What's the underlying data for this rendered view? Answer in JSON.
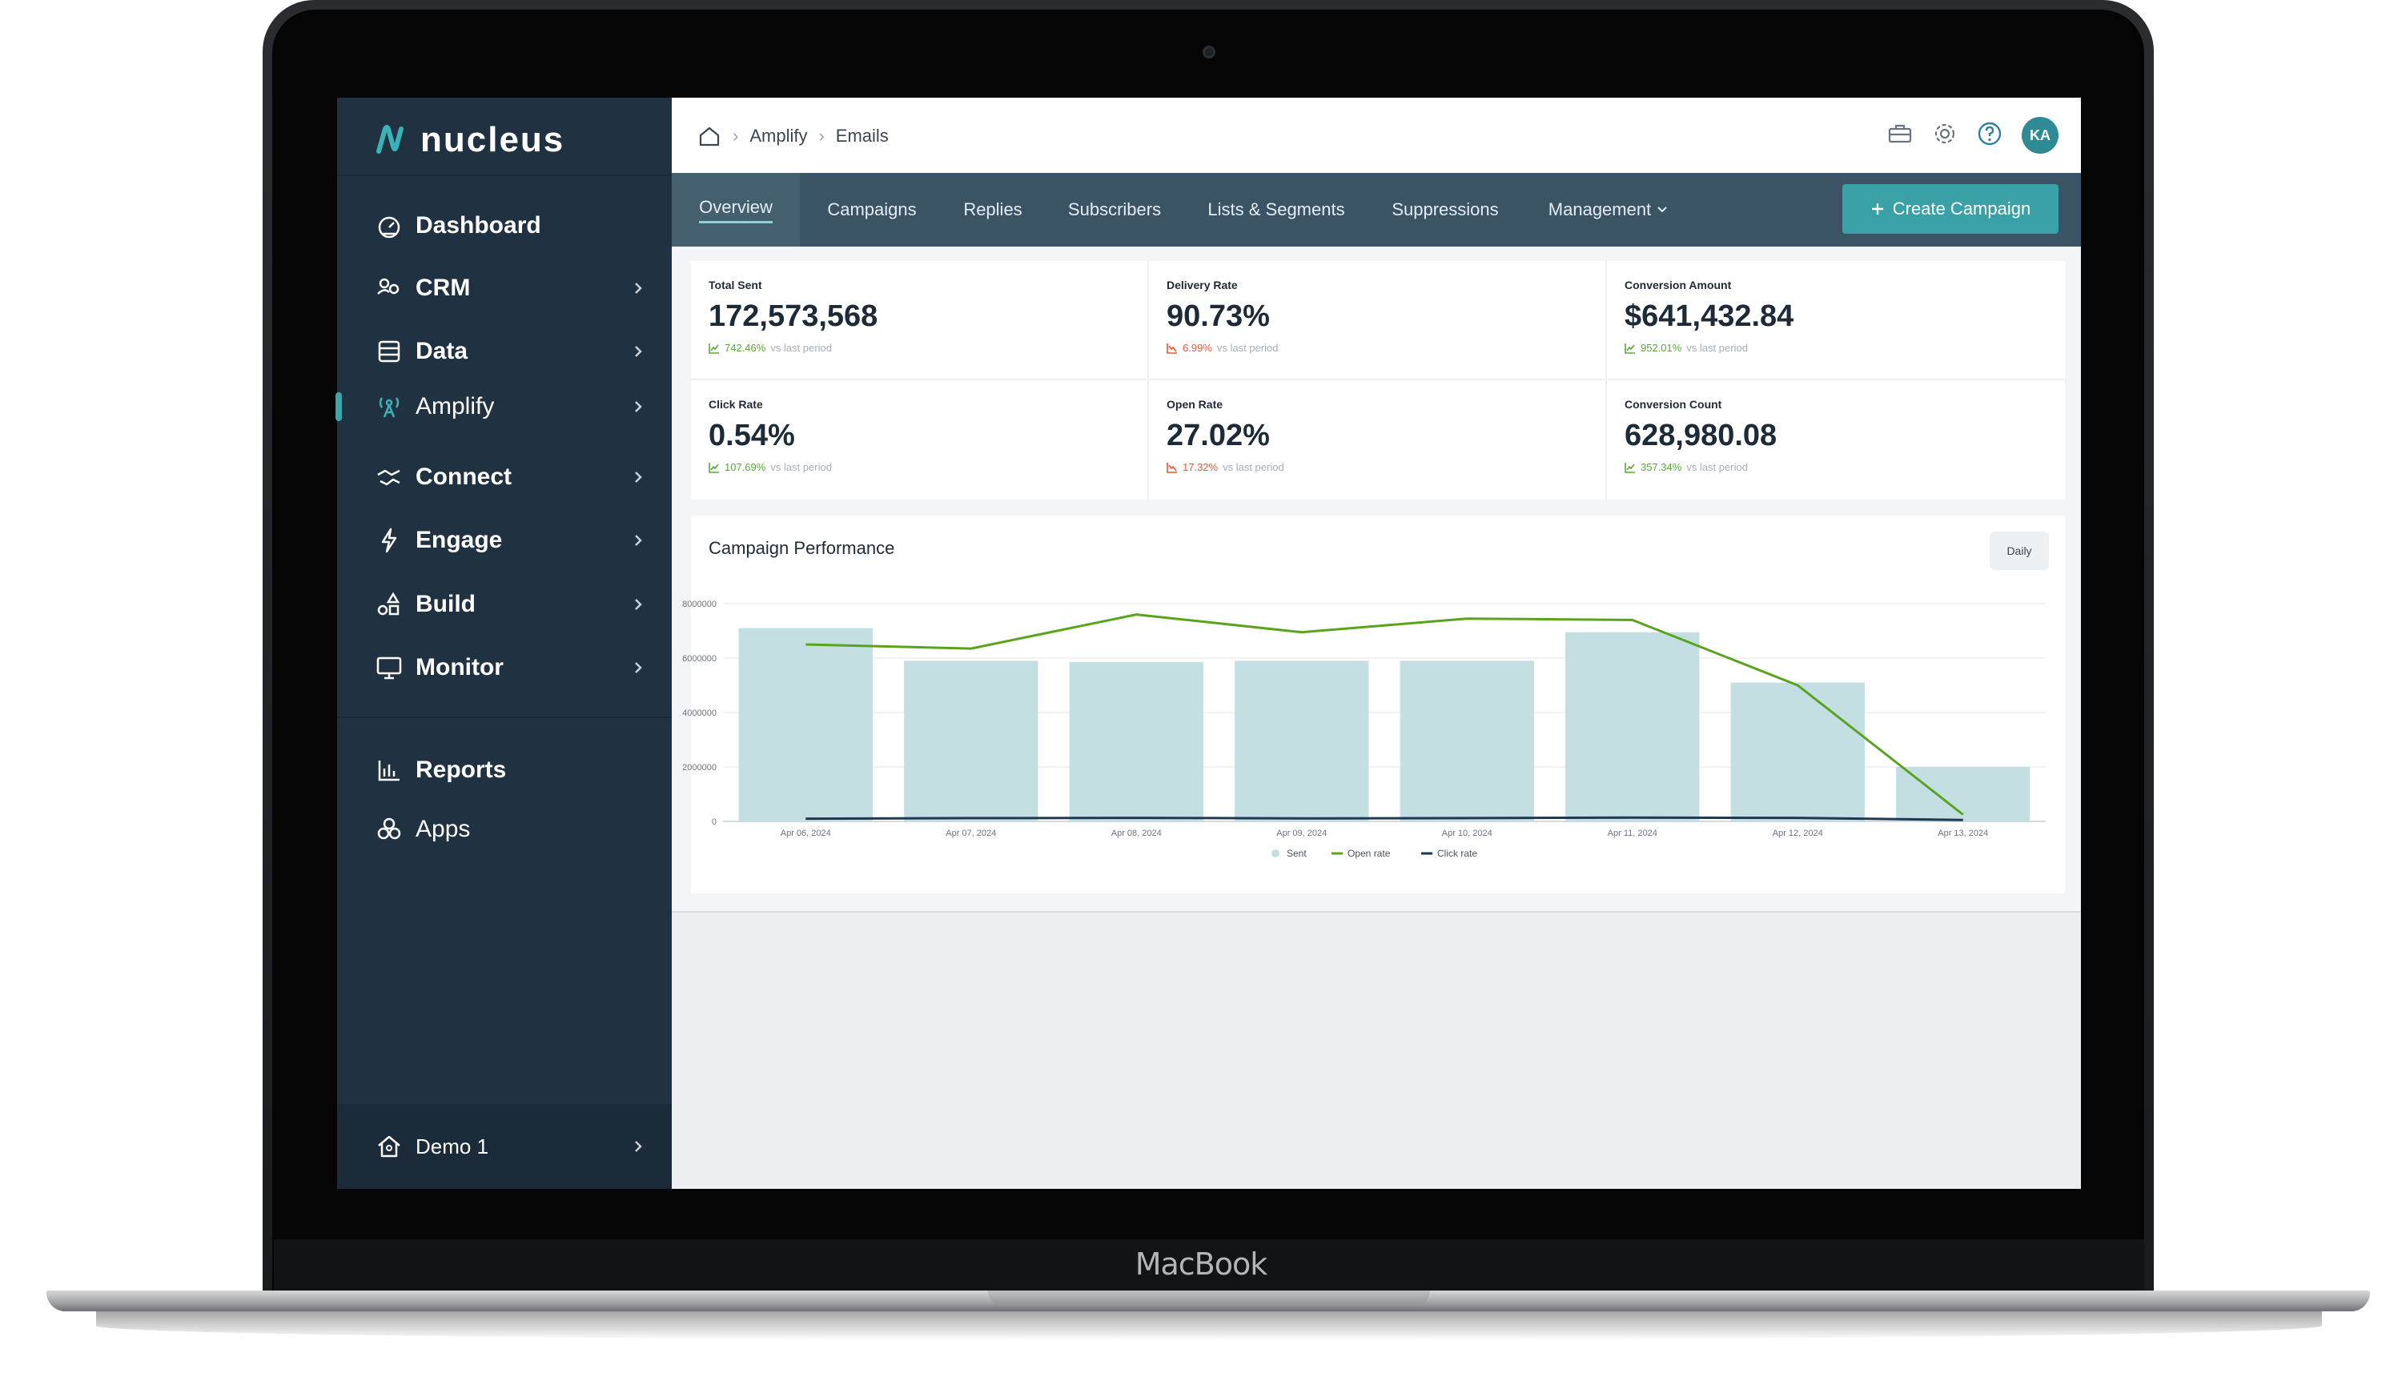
{
  "device": {
    "brand": "MacBook"
  },
  "app": {
    "name": "nucleus"
  },
  "sidebar": {
    "items": [
      {
        "label": "Dashboard",
        "icon": "dashboard-icon",
        "chevron": false
      },
      {
        "label": "CRM",
        "icon": "crm-icon",
        "chevron": true
      },
      {
        "label": "Data",
        "icon": "database-icon",
        "chevron": true
      },
      {
        "label": "Amplify",
        "icon": "broadcast-icon",
        "chevron": true,
        "active": true
      },
      {
        "label": "Connect",
        "icon": "handshake-icon",
        "chevron": true
      },
      {
        "label": "Engage",
        "icon": "lightning-icon",
        "chevron": true
      },
      {
        "label": "Build",
        "icon": "shapes-icon",
        "chevron": true
      },
      {
        "label": "Monitor",
        "icon": "monitor-icon",
        "chevron": true
      }
    ],
    "secondary": [
      {
        "label": "Reports",
        "icon": "bar-chart-icon"
      },
      {
        "label": "Apps",
        "icon": "apps-icon"
      }
    ],
    "workspace": {
      "label": "Demo 1",
      "icon": "home-icon"
    }
  },
  "header": {
    "breadcrumb": [
      "Amplify",
      "Emails"
    ],
    "avatar_initials": "KA"
  },
  "tabs": {
    "items": [
      "Overview",
      "Campaigns",
      "Replies",
      "Subscribers",
      "Lists & Segments",
      "Suppressions",
      "Management"
    ],
    "active": "Overview",
    "create_label": "Create Campaign"
  },
  "stats": [
    {
      "title": "Total Sent",
      "value": "172,573,568",
      "change": "742.46%",
      "suffix": "vs last period",
      "trend": "up"
    },
    {
      "title": "Delivery Rate",
      "value": "90.73%",
      "change": "6.99%",
      "suffix": "vs last period",
      "trend": "down"
    },
    {
      "title": "Conversion Amount",
      "value": "$641,432.84",
      "change": "952.01%",
      "suffix": "vs last period",
      "trend": "up"
    },
    {
      "title": "Click Rate",
      "value": "0.54%",
      "change": "107.69%",
      "suffix": "vs last period",
      "trend": "up"
    },
    {
      "title": "Open Rate",
      "value": "27.02%",
      "change": "17.32%",
      "suffix": "vs last period",
      "trend": "down"
    },
    {
      "title": "Conversion Count",
      "value": "628,980.08",
      "change": "357.34%",
      "suffix": "vs last period",
      "trend": "up"
    }
  ],
  "chart": {
    "title": "Campaign Performance",
    "period_button": "Daily"
  },
  "chart_data": {
    "type": "bar",
    "categories": [
      "Apr 06, 2024",
      "Apr 07, 2024",
      "Apr 08, 2024",
      "Apr 09, 2024",
      "Apr 10, 2024",
      "Apr 11, 2024",
      "Apr 12, 2024",
      "Apr 13, 2024"
    ],
    "y_tick_labels": [
      "0",
      "2000000",
      "4000000",
      "6000000",
      "8000000"
    ],
    "ylim": [
      0,
      8000000
    ],
    "series": [
      {
        "name": "Sent",
        "kind": "bar",
        "color": "#c3dfe2",
        "values": [
          7100000,
          5900000,
          5850000,
          5900000,
          5900000,
          6950000,
          5100000,
          2000000
        ]
      },
      {
        "name": "Open rate",
        "kind": "line",
        "color": "#5aa31f",
        "values": [
          6500000,
          6350000,
          7600000,
          6950000,
          7450000,
          7400000,
          5000000,
          250000
        ]
      },
      {
        "name": "Click rate",
        "kind": "line",
        "color": "#1e3a52",
        "values": [
          100000,
          120000,
          130000,
          110000,
          120000,
          140000,
          130000,
          50000
        ]
      }
    ],
    "grid": true,
    "legend": "bottom"
  }
}
